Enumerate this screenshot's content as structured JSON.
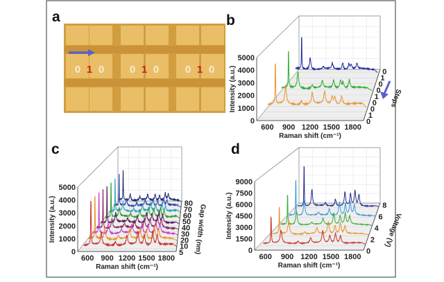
{
  "panel_labels": [
    "a",
    "b",
    "c",
    "d"
  ],
  "panel_a": {
    "bits": [
      [
        "0",
        "1",
        "0"
      ],
      [
        "0",
        "1",
        "0"
      ],
      [
        "0",
        "1",
        "0"
      ]
    ],
    "colors": {
      "substrate": "#dcaa4c",
      "zero": "#f6ecd4",
      "one": "#c0281c",
      "arrow": "#5a5fc8"
    }
  },
  "chart_data": [
    {
      "panel": "b",
      "type": "line",
      "style": "3d-waterfall",
      "xlabel": "Raman shift (cm⁻¹)",
      "ylabel": "Intensity (a.u.)",
      "zlabel": "Steps",
      "xlim": [
        450,
        1950
      ],
      "ylim": [
        0,
        5000
      ],
      "xticks": [
        "600",
        "900",
        "1200",
        "1500",
        "1800"
      ],
      "yticks": [
        "0",
        "1000",
        "2000",
        "3000",
        "4000",
        "5000"
      ],
      "zticks": [
        "0",
        "1",
        "0",
        "0",
        "1",
        "0",
        "0",
        "1",
        "0"
      ],
      "grid": true,
      "peaks_cm": [
        620,
        770,
        1000,
        1160,
        1340,
        1450,
        1490,
        1590
      ],
      "series": [
        {
          "depth_index": 1,
          "color": "#e8952e",
          "baseline": 650,
          "peak_heights": [
            4000,
            1400,
            300,
            900,
            1000,
            600,
            600,
            700
          ]
        },
        {
          "depth_index": 4,
          "color": "#2eaa2e",
          "baseline": 600,
          "peak_heights": [
            3800,
            1400,
            300,
            600,
            700,
            700,
            500,
            700
          ]
        },
        {
          "depth_index": 7,
          "color": "#1c2aa0",
          "baseline": 800,
          "peak_heights": [
            3500,
            1100,
            200,
            500,
            600,
            500,
            400,
            500
          ]
        }
      ]
    },
    {
      "panel": "c",
      "type": "line",
      "style": "3d-waterfall",
      "xlabel": "Raman shift (cm⁻¹)",
      "ylabel": "Intensity (a.u.)",
      "zlabel": "Gap width (nm)",
      "xlim": [
        450,
        1950
      ],
      "ylim": [
        0,
        5000
      ],
      "xticks": [
        "600",
        "900",
        "1200",
        "1500",
        "1800"
      ],
      "yticks": [
        "0",
        "1000",
        "2000",
        "3000",
        "4000",
        "5000"
      ],
      "zticks": [
        "5",
        "10",
        "20",
        "30",
        "40",
        "50",
        "60",
        "70",
        "80"
      ],
      "grid": true,
      "peaks_cm": [
        620,
        780,
        1000,
        1180,
        1350,
        1450,
        1580,
        1650
      ],
      "series": [
        {
          "name": "5",
          "color": "#c8302a",
          "baseline": 300,
          "peak_heights": [
            4200,
            900,
            300,
            700,
            1000,
            800,
            1100,
            800
          ]
        },
        {
          "name": "10",
          "color": "#e8942a",
          "baseline": 350,
          "peak_heights": [
            4100,
            900,
            300,
            700,
            900,
            800,
            1000,
            700
          ]
        },
        {
          "name": "20",
          "color": "#c83cc8",
          "baseline": 350,
          "peak_heights": [
            4000,
            900,
            300,
            700,
            900,
            700,
            900,
            700
          ]
        },
        {
          "name": "30",
          "color": "#8a2a5a",
          "baseline": 350,
          "peak_heights": [
            3900,
            800,
            300,
            600,
            800,
            700,
            900,
            600
          ]
        },
        {
          "name": "40",
          "color": "#5a1e5e",
          "baseline": 350,
          "peak_heights": [
            3800,
            800,
            300,
            600,
            800,
            600,
            800,
            600
          ]
        },
        {
          "name": "50",
          "color": "#2ca02c",
          "baseline": 350,
          "peak_heights": [
            3600,
            700,
            300,
            600,
            700,
            600,
            800,
            600
          ]
        },
        {
          "name": "60",
          "color": "#2aa0c0",
          "baseline": 350,
          "peak_heights": [
            3500,
            700,
            300,
            500,
            700,
            600,
            700,
            500
          ]
        },
        {
          "name": "70",
          "color": "#2a4ab0",
          "baseline": 350,
          "peak_heights": [
            3400,
            600,
            300,
            500,
            600,
            500,
            700,
            500
          ]
        },
        {
          "name": "80",
          "color": "#1e2a70",
          "baseline": 350,
          "peak_heights": [
            3300,
            600,
            300,
            500,
            600,
            500,
            600,
            500
          ]
        }
      ]
    },
    {
      "panel": "d",
      "type": "line",
      "style": "3d-waterfall",
      "xlabel": "Raman shift (cm⁻¹)",
      "ylabel": "Intensity (a.u.)",
      "zlabel": "Voltage (V)",
      "xlim": [
        450,
        1950
      ],
      "ylim": [
        0,
        9000
      ],
      "xticks": [
        "600",
        "900",
        "1200",
        "1500",
        "1800"
      ],
      "yticks": [
        "0",
        "1500",
        "3000",
        "4500",
        "6000",
        "7500",
        "9000"
      ],
      "zticks": [
        "0",
        "2",
        "4",
        "6",
        "8"
      ],
      "grid": true,
      "peaks_cm": [
        620,
        760,
        1000,
        1180,
        1350,
        1450,
        1530,
        1600
      ],
      "series": [
        {
          "name": "0",
          "color": "#c8302a",
          "baseline": 300,
          "peak_heights": [
            4200,
            1700,
            300,
            700,
            1600,
            1000,
            1300,
            1000
          ]
        },
        {
          "name": "2",
          "color": "#e8942a",
          "baseline": 300,
          "peak_heights": [
            4500,
            1800,
            300,
            800,
            1700,
            1200,
            1500,
            1100
          ]
        },
        {
          "name": "4",
          "color": "#3aaa3a",
          "baseline": 300,
          "peak_heights": [
            5200,
            2000,
            300,
            900,
            1700,
            1300,
            1600,
            1200
          ]
        },
        {
          "name": "6",
          "color": "#3a9ad8",
          "baseline": 300,
          "peak_heights": [
            6500,
            2300,
            400,
            1000,
            2000,
            1700,
            2000,
            1500
          ]
        },
        {
          "name": "8",
          "color": "#1e2a90",
          "baseline": 300,
          "peak_heights": [
            7800,
            2600,
            500,
            1100,
            2200,
            1800,
            2300,
            1700
          ]
        }
      ]
    }
  ]
}
